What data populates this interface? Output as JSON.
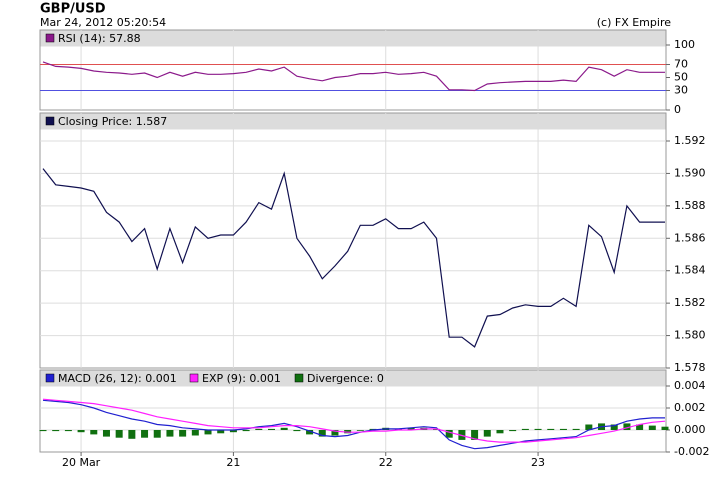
{
  "header": {
    "title": "GBP/USD",
    "timestamp": "Mar 24, 2012 05:20:54",
    "copyright": "(c) FX Empire"
  },
  "chart_data": [
    {
      "type": "line",
      "ylim": [
        0,
        100
      ],
      "yticks": [
        0,
        30,
        50,
        70,
        100
      ],
      "ref_lines": [
        {
          "value": 70,
          "color": "#e05050"
        },
        {
          "value": 30,
          "color": "#5050e0"
        }
      ],
      "series": [
        {
          "name": "RSI (14): 57.88",
          "color": "#8b1a8b",
          "values": [
            74,
            67,
            66,
            64,
            60,
            58,
            57,
            55,
            57,
            50,
            58,
            52,
            58,
            55,
            55,
            56,
            58,
            63,
            60,
            66,
            52,
            48,
            45,
            50,
            52,
            56,
            56,
            58,
            55,
            56,
            58,
            52,
            31,
            31,
            30,
            40,
            42,
            43,
            44,
            44,
            44,
            46,
            44,
            66,
            62,
            52,
            62,
            58,
            58,
            58
          ]
        }
      ]
    },
    {
      "type": "line",
      "ylim": [
        1.578,
        1.592
      ],
      "grid": true,
      "yticks": [
        1.578,
        {
          "value": 1.58,
          "label": "1.580"
        },
        1.582,
        1.584,
        1.586,
        1.588,
        {
          "value": 1.59,
          "label": "1.590"
        },
        1.592
      ],
      "series": [
        {
          "name": "Closing Price: 1.587",
          "color": "#101050",
          "values": [
            1.5903,
            1.5893,
            1.5892,
            1.5891,
            1.5889,
            1.5876,
            1.587,
            1.5858,
            1.5866,
            1.5841,
            1.5866,
            1.5845,
            1.5867,
            1.586,
            1.5862,
            1.5862,
            1.587,
            1.5882,
            1.5878,
            1.59,
            1.586,
            1.5849,
            1.5835,
            1.5843,
            1.5852,
            1.5868,
            1.5868,
            1.5872,
            1.5866,
            1.5866,
            1.587,
            1.586,
            1.5799,
            1.5799,
            1.5793,
            1.5812,
            1.5813,
            1.5817,
            1.5819,
            1.5818,
            1.5818,
            1.5823,
            1.5818,
            1.5868,
            1.5861,
            1.5839,
            1.588,
            1.587,
            1.587,
            1.587
          ]
        }
      ]
    },
    {
      "type": "combo",
      "ylim": [
        -0.002,
        0.004
      ],
      "grid": true,
      "yticks": [
        -0.002,
        {
          "value": 0,
          "label": "0.000"
        },
        0.002,
        0.004
      ],
      "categories": [
        null,
        null,
        null,
        "20 Mar",
        null,
        null,
        null,
        null,
        null,
        null,
        null,
        null,
        null,
        null,
        null,
        "21",
        null,
        null,
        null,
        null,
        null,
        null,
        null,
        null,
        null,
        null,
        null,
        "22",
        null,
        null,
        null,
        null,
        null,
        null,
        null,
        null,
        null,
        null,
        null,
        "23",
        null,
        null,
        null,
        null,
        null,
        null,
        null,
        null,
        null,
        null
      ],
      "series": [
        {
          "name": "MACD (26, 12): 0.001",
          "type": "line",
          "color": "#2020d0",
          "values": [
            0.0027,
            0.0026,
            0.0025,
            0.0023,
            0.002,
            0.0016,
            0.0013,
            0.001,
            0.0008,
            0.0005,
            0.0004,
            0.0002,
            0.0001,
            0,
            0,
            0,
            0.0001,
            0.0003,
            0.0004,
            0.0006,
            0.0003,
            -0.0001,
            -0.0005,
            -0.0006,
            -0.0005,
            -0.0002,
            0,
            0.0001,
            0.0001,
            0.0002,
            0.0003,
            0.0002,
            -0.0009,
            -0.0014,
            -0.0017,
            -0.0016,
            -0.0014,
            -0.0012,
            -0.001,
            -0.0009,
            -0.0008,
            -0.0007,
            -0.0006,
            0,
            0.0003,
            0.0004,
            0.0008,
            0.001,
            0.0011,
            0.0011
          ]
        },
        {
          "name": "EXP (9): 0.001",
          "type": "line",
          "color": "#ff20ff",
          "values": [
            0.0028,
            0.0027,
            0.0026,
            0.0025,
            0.0024,
            0.0022,
            0.002,
            0.0018,
            0.0015,
            0.0012,
            0.001,
            0.0008,
            0.0006,
            0.0004,
            0.0003,
            0.0002,
            0.0002,
            0.0002,
            0.0003,
            0.0004,
            0.0004,
            0.0003,
            0.0001,
            -0.0001,
            -0.0002,
            -0.0002,
            -0.0001,
            -0.0001,
            0,
            0,
            0.0001,
            0.0001,
            -0.0002,
            -0.0005,
            -0.0008,
            -0.001,
            -0.0011,
            -0.0011,
            -0.0011,
            -0.001,
            -0.0009,
            -0.0008,
            -0.0007,
            -0.0005,
            -0.0003,
            -0.0001,
            0.0002,
            0.0005,
            0.0007,
            0.0008
          ]
        },
        {
          "name": "Divergence: 0",
          "type": "bar",
          "color": "#107010",
          "values": [
            -0.0001,
            -0.0001,
            -0.0001,
            -0.0002,
            -0.0004,
            -0.0006,
            -0.0007,
            -0.0008,
            -0.0007,
            -0.0007,
            -0.0006,
            -0.0006,
            -0.0005,
            -0.0004,
            -0.0003,
            -0.0002,
            -0.0001,
            0.0001,
            0.0001,
            0.0002,
            -0.0001,
            -0.0004,
            -0.0006,
            -0.0005,
            -0.0003,
            0,
            0.0001,
            0.0002,
            0.0001,
            0.0002,
            0.0002,
            0.0001,
            -0.0007,
            -0.0009,
            -0.0009,
            -0.0006,
            -0.0003,
            -0.0001,
            0.0001,
            0.0001,
            0.0001,
            0.0001,
            0.0001,
            0.0005,
            0.0006,
            0.0005,
            0.0006,
            0.0005,
            0.0004,
            0.0003
          ]
        }
      ]
    }
  ]
}
